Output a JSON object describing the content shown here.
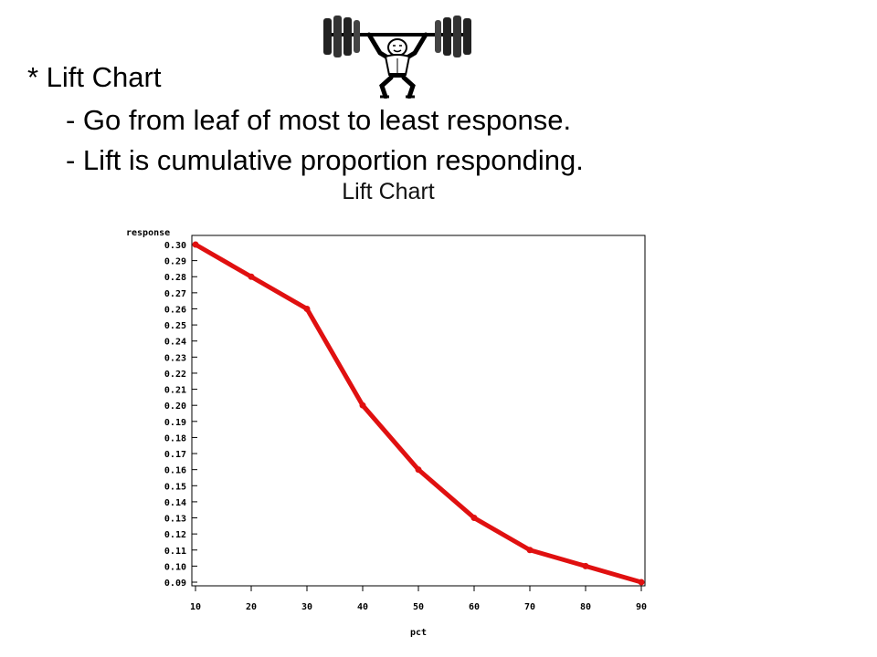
{
  "slide": {
    "bullets": [
      "* Lift Chart",
      "- Go from leaf of most  to least response.",
      "- Lift is cumulative proportion responding."
    ],
    "decoration_icon": "weightlifter-icon"
  },
  "chart_data": {
    "type": "line",
    "title": "Lift Chart",
    "xlabel": "pct",
    "ylabel": "response",
    "x": [
      10,
      20,
      30,
      40,
      50,
      60,
      70,
      80,
      90
    ],
    "series": [
      {
        "values": [
          0.3,
          0.28,
          0.26,
          0.2,
          0.16,
          0.13,
          0.11,
          0.1,
          0.09
        ]
      }
    ],
    "xticks": [
      "10",
      "20",
      "30",
      "40",
      "50",
      "60",
      "70",
      "80",
      "90"
    ],
    "yticks": [
      "0.30",
      "0.29",
      "0.28",
      "0.27",
      "0.26",
      "0.25",
      "0.24",
      "0.23",
      "0.22",
      "0.21",
      "0.20",
      "0.19",
      "0.18",
      "0.17",
      "0.16",
      "0.15",
      "0.14",
      "0.13",
      "0.12",
      "0.11",
      "0.10",
      "0.09"
    ],
    "xlim": [
      10,
      90
    ],
    "ylim": [
      0.09,
      0.3
    ],
    "grid": false,
    "line_color": "#e01010"
  }
}
